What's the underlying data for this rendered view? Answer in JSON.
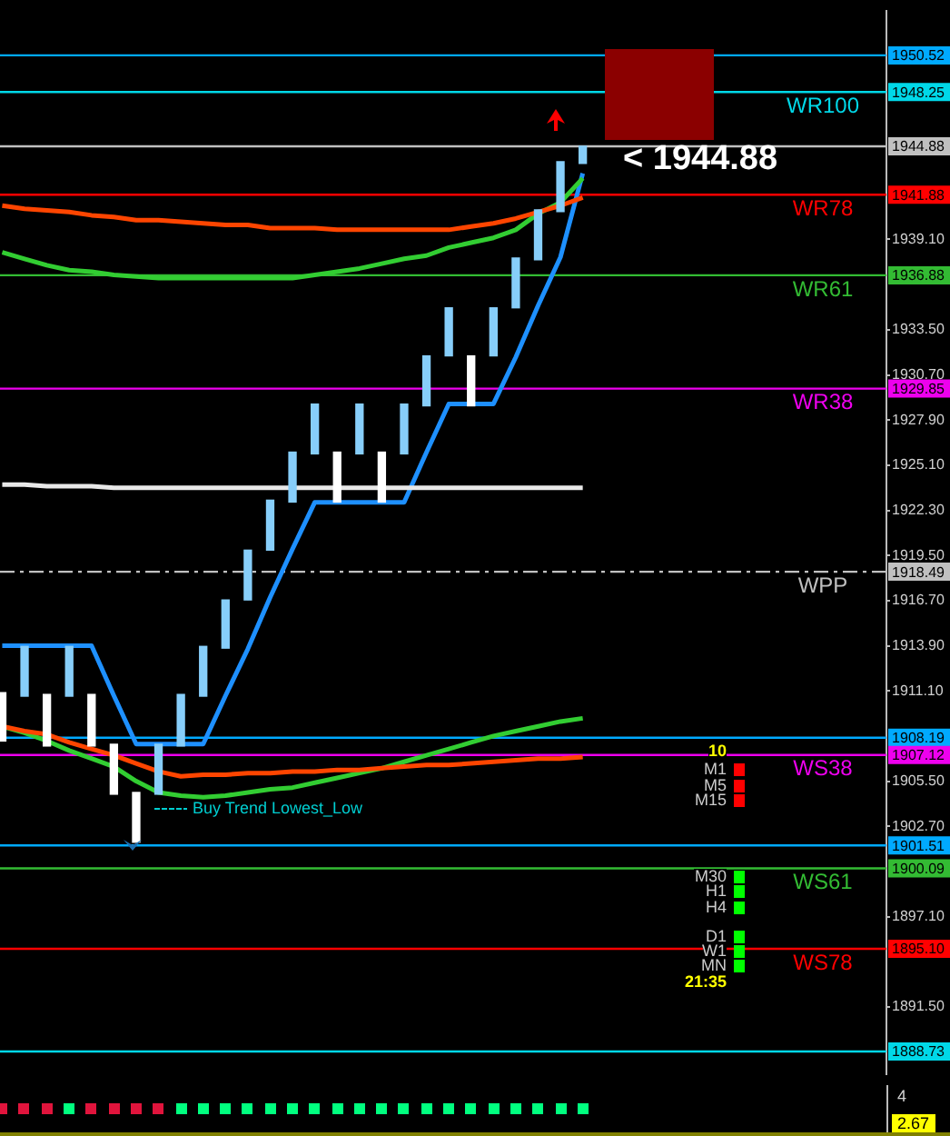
{
  "chart_data": [
    {
      "type": "candlestick",
      "categories": [
        null,
        null,
        null,
        null,
        null,
        null,
        null,
        null,
        null,
        null,
        null,
        null,
        null,
        null,
        null,
        null,
        null,
        null,
        null,
        null,
        null,
        null,
        null,
        null,
        null,
        null,
        null
      ],
      "ohlc": [
        [
          1910.99,
          1910.99,
          1907.99,
          1907.99
        ],
        [
          1910.77,
          1913.86,
          1910.77,
          1913.86
        ],
        [
          1910.88,
          1910.88,
          1907.68,
          1907.68
        ],
        [
          1910.77,
          1913.86,
          1910.77,
          1913.86
        ],
        [
          1910.88,
          1910.88,
          1907.68,
          1907.68
        ],
        [
          1907.79,
          1907.79,
          1904.69,
          1904.69
        ],
        [
          1904.8,
          1904.8,
          1901.71,
          1901.71
        ],
        [
          1904.69,
          1907.79,
          1904.69,
          1907.79
        ],
        [
          1907.68,
          1910.88,
          1907.68,
          1910.88
        ],
        [
          1910.77,
          1913.86,
          1910.77,
          1913.86
        ],
        [
          1913.75,
          1916.74,
          1913.75,
          1916.74
        ],
        [
          1916.74,
          1919.83,
          1916.74,
          1919.83
        ],
        [
          1919.83,
          1922.93,
          1919.83,
          1922.93
        ],
        [
          1922.81,
          1925.91,
          1922.81,
          1925.91
        ],
        [
          1925.8,
          1928.89,
          1925.8,
          1928.89
        ],
        [
          1925.91,
          1925.91,
          1922.81,
          1922.81
        ],
        [
          1925.8,
          1928.89,
          1925.8,
          1928.89
        ],
        [
          1925.91,
          1925.91,
          1922.81,
          1922.81
        ],
        [
          1925.8,
          1928.89,
          1925.8,
          1928.89
        ],
        [
          1928.78,
          1931.88,
          1928.78,
          1931.88
        ],
        [
          1931.88,
          1934.86,
          1931.88,
          1934.86
        ],
        [
          1931.88,
          1931.88,
          1928.78,
          1928.78
        ],
        [
          1931.88,
          1934.86,
          1931.88,
          1934.86
        ],
        [
          1934.86,
          1937.95,
          1934.86,
          1937.95
        ],
        [
          1937.84,
          1940.94,
          1937.84,
          1940.94
        ],
        [
          1940.83,
          1943.92,
          1940.83,
          1943.92
        ],
        [
          1943.81,
          1944.88,
          1943.81,
          1944.88
        ]
      ],
      "colors": [
        "#ffffff",
        "#87cefa",
        "#ffffff",
        "#87cefa",
        "#ffffff",
        "#ffffff",
        "#ffffff",
        "#87cefa",
        "#87cefa",
        "#87cefa",
        "#87cefa",
        "#87cefa",
        "#87cefa",
        "#87cefa",
        "#87cefa",
        "#ffffff",
        "#87cefa",
        "#ffffff",
        "#87cefa",
        "#87cefa",
        "#87cefa",
        "#ffffff",
        "#87cefa",
        "#87cefa",
        "#87cefa",
        "#87cefa",
        "#87cefa"
      ],
      "series": [
        {
          "type": "line",
          "color": "#ff4500",
          "values": [
            1941.2,
            1941.0,
            1940.9,
            1940.8,
            1940.6,
            1940.5,
            1940.3,
            1940.3,
            1940.2,
            1940.1,
            1940.0,
            1940.0,
            1939.8,
            1939.8,
            1939.8,
            1939.7,
            1939.7,
            1939.7,
            1939.7,
            1939.7,
            1939.7,
            1939.9,
            1940.1,
            1940.4,
            1940.8,
            1941.2,
            1941.7
          ]
        },
        {
          "type": "line",
          "color": "#32cd32",
          "values": [
            1938.3,
            1937.9,
            1937.5,
            1937.2,
            1937.1,
            1936.9,
            1936.8,
            1936.7,
            1936.7,
            1936.7,
            1936.7,
            1936.7,
            1936.7,
            1936.7,
            1936.9,
            1937.1,
            1937.3,
            1937.6,
            1937.9,
            1938.1,
            1938.6,
            1938.9,
            1939.2,
            1939.7,
            1940.7,
            1941.4,
            1942.9
          ]
        },
        {
          "type": "line",
          "color": "#ff4500",
          "values": [
            1908.9,
            1908.6,
            1908.4,
            1907.9,
            1907.5,
            1907.1,
            1906.6,
            1906.1,
            1905.8,
            1905.9,
            1905.9,
            1906.0,
            1906.0,
            1906.1,
            1906.1,
            1906.2,
            1906.2,
            1906.3,
            1906.4,
            1906.5,
            1906.5,
            1906.6,
            1906.7,
            1906.8,
            1906.9,
            1906.9,
            1907.0
          ]
        },
        {
          "type": "line",
          "color": "#32cd32",
          "values": [
            1908.9,
            1908.5,
            1908.0,
            1907.4,
            1906.9,
            1906.4,
            1905.5,
            1904.8,
            1904.6,
            1904.5,
            1904.6,
            1904.8,
            1905.0,
            1905.1,
            1905.4,
            1905.7,
            1906.0,
            1906.3,
            1906.7,
            1907.1,
            1907.5,
            1907.9,
            1908.3,
            1908.6,
            1908.9,
            1909.2,
            1909.4
          ]
        },
        {
          "type": "line",
          "color": "#e8e8e8",
          "values": [
            1923.9,
            1923.9,
            1923.8,
            1923.8,
            1923.8,
            1923.7,
            1923.7,
            1923.7,
            1923.7,
            1923.7,
            1923.7,
            1923.7,
            1923.7,
            1923.7,
            1923.7,
            1923.7,
            1923.7,
            1923.7,
            1923.7,
            1923.7,
            1923.7,
            1923.7,
            1923.7,
            1923.7,
            1923.7,
            1923.7,
            1923.7
          ]
        },
        {
          "type": "line",
          "color": "#1e90ff",
          "values": [
            1913.9,
            1913.9,
            1913.9,
            1913.9,
            1913.9,
            1910.8,
            1907.8,
            1907.8,
            1907.8,
            1907.8,
            1910.8,
            1913.7,
            1916.9,
            1919.9,
            1922.8,
            1922.8,
            1922.8,
            1922.8,
            1922.8,
            1925.9,
            1928.9,
            1928.9,
            1928.9,
            1931.8,
            1935.0,
            1938.0,
            1943.2
          ]
        }
      ],
      "ylim": [
        1887.3,
        1953.3
      ],
      "yticks": [
        {
          "value": 1939.1,
          "label": "1939.10"
        },
        {
          "value": 1933.5,
          "label": "1933.50"
        },
        {
          "value": 1930.7,
          "label": "1930.70"
        },
        {
          "value": 1927.9,
          "label": "1927.90"
        },
        {
          "value": 1925.1,
          "label": "1925.10"
        },
        {
          "value": 1922.3,
          "label": "1922.30"
        },
        {
          "value": 1919.5,
          "label": "1919.50"
        },
        {
          "value": 1916.7,
          "label": "1916.70"
        },
        {
          "value": 1913.9,
          "label": "1913.90"
        },
        {
          "value": 1911.1,
          "label": "1911.10"
        },
        {
          "value": 1905.5,
          "label": "1905.50"
        },
        {
          "value": 1902.7,
          "label": "1902.70"
        },
        {
          "value": 1897.1,
          "label": "1897.10"
        },
        {
          "value": 1891.5,
          "label": "1891.50"
        }
      ],
      "ref_lines": [
        {
          "axis": "y",
          "value": 1950.52,
          "label": "1950.52",
          "color": "#00aaff"
        },
        {
          "axis": "y",
          "value": 1948.25,
          "label": "1948.25",
          "color": "#00d8e8"
        },
        {
          "axis": "y",
          "value": 1944.88,
          "label": "1944.88",
          "color": "#c0c0c0"
        },
        {
          "axis": "y",
          "value": 1941.88,
          "label": "1941.88",
          "color": "#ff0000"
        },
        {
          "axis": "y",
          "value": 1936.88,
          "label": "1936.88",
          "color": "#33bb33"
        },
        {
          "axis": "y",
          "value": 1929.85,
          "label": "1929.85",
          "color": "#ee00ee"
        },
        {
          "axis": "y",
          "value": 1918.49,
          "label": "1918.49",
          "color": "#c0c0c0",
          "line_style": "dashed"
        },
        {
          "axis": "y",
          "value": 1908.19,
          "label": "1908.19",
          "color": "#00aaff"
        },
        {
          "axis": "y",
          "value": 1907.12,
          "label": "1907.12",
          "color": "#ee00ee"
        },
        {
          "axis": "y",
          "value": 1901.51,
          "label": "1901.51",
          "color": "#00aaff"
        },
        {
          "axis": "y",
          "value": 1900.09,
          "label": "1900.09",
          "color": "#33bb33"
        },
        {
          "axis": "y",
          "value": 1895.1,
          "label": "1895.10",
          "color": "#ff0000"
        },
        {
          "axis": "y",
          "value": 1888.73,
          "label": "1888.73",
          "color": "#00d8e8"
        }
      ],
      "annotations": [
        "< 1944.88",
        "Buy Trend Lowest_Low",
        "10",
        "M1",
        "M5",
        "M15",
        "M30",
        "H1",
        "H4",
        "D1",
        "W1",
        "MN",
        "21:35",
        {
          "text": "WR100",
          "y": 1948.25
        },
        {
          "text": "WR78",
          "y": 1941.88
        },
        {
          "text": "WR61",
          "y": 1936.88
        },
        {
          "text": "WR38",
          "y": 1929.85
        },
        {
          "text": "WPP",
          "y": 1918.49
        },
        {
          "text": "WS38",
          "y": 1907.12
        },
        {
          "text": "WS61",
          "y": 1900.09
        },
        {
          "text": "WS78",
          "y": 1895.1
        }
      ],
      "marker": "none",
      "grid": false,
      "legend": false,
      "tick_labels": "y"
    },
    {
      "type": "other",
      "colors": [
        "#e0143c",
        "#e0143c",
        "#e0143c",
        "#00ff7f",
        "#e0143c",
        "#e0143c",
        "#e0143c",
        "#e0143c",
        "#00ff7f",
        "#00ff7f",
        "#00ff7f",
        "#00ff7f",
        "#00ff7f",
        "#00ff7f",
        "#00ff7f",
        "#00ff7f",
        "#00ff7f",
        "#00ff7f",
        "#00ff7f",
        "#00ff7f",
        "#00ff7f",
        "#00ff7f",
        "#00ff7f",
        "#00ff7f",
        "#00ff7f",
        "#00ff7f",
        "#00ff7f"
      ],
      "annotations": [
        "4",
        "2.67"
      ]
    }
  ]
}
